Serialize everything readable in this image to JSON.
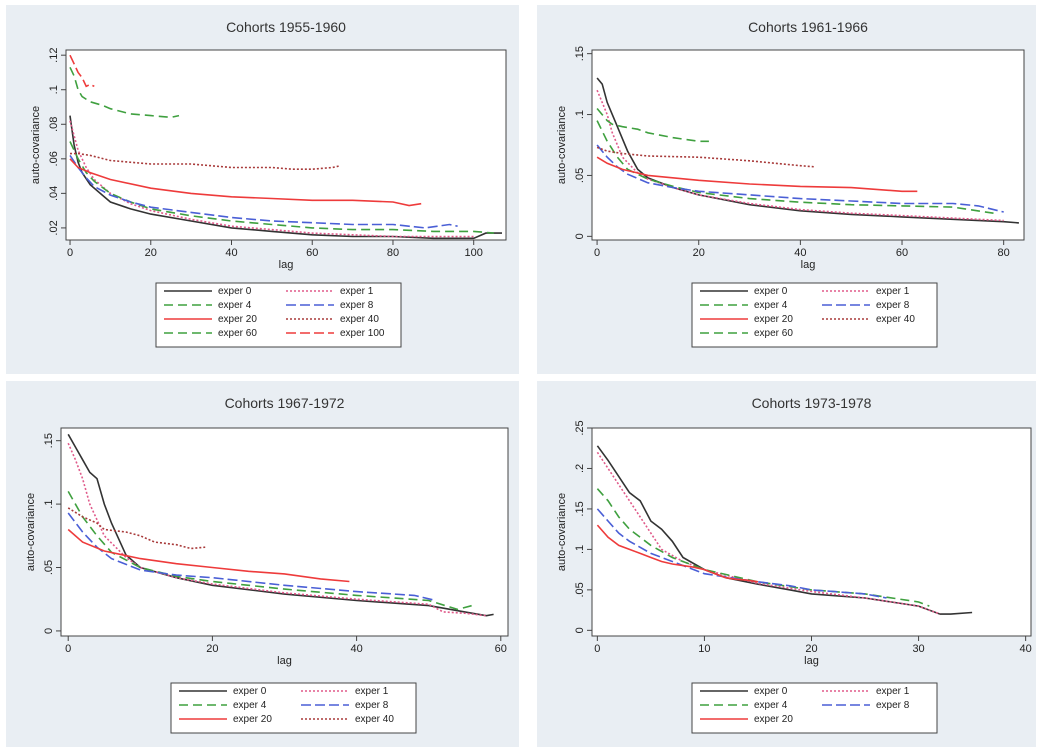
{
  "chart_data": [
    {
      "type": "line",
      "title": "Cohorts 1955-1960",
      "xlabel": "lag",
      "ylabel": "auto-covariance",
      "xlim": [
        -1,
        108
      ],
      "ylim": [
        0.013,
        0.123
      ],
      "xticks": [
        0,
        20,
        40,
        60,
        80,
        100
      ],
      "xtick_labels": [
        "0",
        "20",
        "40",
        "60",
        "80",
        "100"
      ],
      "yticks": [
        0.02,
        0.04,
        0.06,
        0.08,
        0.1,
        0.12
      ],
      "ytick_labels": [
        ".02",
        ".04",
        ".06",
        ".08",
        ".1",
        ".12"
      ],
      "grid": false,
      "legend_position": "bottom",
      "series": [
        {
          "name": "exper 0",
          "color": "#333333",
          "dash": "",
          "x": [
            0,
            1,
            2,
            3,
            5,
            8,
            10,
            15,
            20,
            30,
            40,
            50,
            60,
            70,
            80,
            90,
            100,
            103,
            107
          ],
          "y": [
            0.085,
            0.068,
            0.058,
            0.052,
            0.045,
            0.039,
            0.035,
            0.031,
            0.028,
            0.024,
            0.02,
            0.018,
            0.016,
            0.015,
            0.015,
            0.014,
            0.014,
            0.017,
            0.017
          ]
        },
        {
          "name": "exper 1",
          "color": "#e05a8a",
          "dash": "2,2",
          "x": [
            0,
            2,
            4,
            6,
            10,
            15,
            20,
            30,
            40,
            50,
            60,
            70,
            80,
            90,
            100
          ],
          "y": [
            0.082,
            0.065,
            0.055,
            0.048,
            0.04,
            0.034,
            0.03,
            0.025,
            0.021,
            0.019,
            0.017,
            0.016,
            0.015,
            0.015,
            0.015
          ]
        },
        {
          "name": "exper 4",
          "color": "#3fa03f",
          "dash": "9,5",
          "x": [
            0,
            2,
            4,
            6,
            10,
            15,
            20,
            30,
            40,
            50,
            60,
            70,
            80,
            90,
            100,
            105
          ],
          "y": [
            0.07,
            0.06,
            0.052,
            0.047,
            0.04,
            0.035,
            0.031,
            0.027,
            0.024,
            0.022,
            0.02,
            0.019,
            0.019,
            0.018,
            0.018,
            0.017
          ]
        },
        {
          "name": "exper 8",
          "color": "#4a5fd6",
          "dash": "10,4",
          "x": [
            0,
            2,
            4,
            6,
            10,
            15,
            20,
            30,
            40,
            50,
            60,
            70,
            80,
            88,
            94,
            96
          ],
          "y": [
            0.062,
            0.055,
            0.049,
            0.044,
            0.039,
            0.035,
            0.032,
            0.029,
            0.026,
            0.024,
            0.023,
            0.022,
            0.022,
            0.02,
            0.022,
            0.021
          ]
        },
        {
          "name": "exper 20",
          "color": "#ee3b3b",
          "dash": "",
          "x": [
            0,
            2,
            5,
            10,
            20,
            30,
            40,
            50,
            60,
            70,
            80,
            84,
            87
          ],
          "y": [
            0.06,
            0.055,
            0.052,
            0.048,
            0.043,
            0.04,
            0.038,
            0.037,
            0.036,
            0.036,
            0.035,
            0.033,
            0.034
          ]
        },
        {
          "name": "exper 40",
          "color": "#a83a3a",
          "dash": "2,2",
          "x": [
            0,
            2,
            5,
            10,
            20,
            30,
            40,
            50,
            55,
            60,
            65,
            67
          ],
          "y": [
            0.063,
            0.063,
            0.062,
            0.059,
            0.057,
            0.057,
            0.055,
            0.055,
            0.054,
            0.054,
            0.055,
            0.056
          ]
        },
        {
          "name": "exper 60",
          "color": "#3fa03f",
          "dash": "9,5",
          "x": [
            0,
            1,
            2,
            3,
            5,
            8,
            10,
            15,
            20,
            25,
            27
          ],
          "y": [
            0.113,
            0.108,
            0.1,
            0.096,
            0.093,
            0.091,
            0.089,
            0.086,
            0.085,
            0.084,
            0.085
          ]
        },
        {
          "name": "exper 100",
          "color": "#ee3b3b",
          "dash": "10,4",
          "x": [
            0,
            1,
            2,
            3,
            4,
            5,
            6
          ],
          "y": [
            0.12,
            0.115,
            0.11,
            0.107,
            0.102,
            0.103,
            0.102
          ]
        }
      ]
    },
    {
      "type": "line",
      "title": "Cohorts 1961-1966",
      "xlabel": "lag",
      "ylabel": "auto-covariance",
      "xlim": [
        -1,
        84
      ],
      "ylim": [
        -0.003,
        0.153
      ],
      "xticks": [
        0,
        20,
        40,
        60,
        80
      ],
      "xtick_labels": [
        "0",
        "20",
        "40",
        "60",
        "80"
      ],
      "yticks": [
        0,
        0.05,
        0.1,
        0.15
      ],
      "ytick_labels": [
        "0",
        ".05",
        ".1",
        ".15"
      ],
      "grid": false,
      "legend_position": "bottom",
      "series": [
        {
          "name": "exper 0",
          "color": "#333333",
          "dash": "",
          "x": [
            0,
            1,
            2,
            3,
            4,
            5,
            6,
            8,
            10,
            15,
            20,
            30,
            40,
            50,
            60,
            70,
            80,
            83
          ],
          "y": [
            0.13,
            0.125,
            0.11,
            0.1,
            0.09,
            0.08,
            0.07,
            0.055,
            0.048,
            0.04,
            0.034,
            0.026,
            0.021,
            0.018,
            0.016,
            0.014,
            0.012,
            0.011
          ]
        },
        {
          "name": "exper 1",
          "color": "#e05a8a",
          "dash": "2,2",
          "x": [
            0,
            1,
            2,
            3,
            5,
            8,
            10,
            15,
            20,
            30,
            40,
            50,
            60,
            70,
            80
          ],
          "y": [
            0.12,
            0.11,
            0.1,
            0.085,
            0.065,
            0.052,
            0.047,
            0.04,
            0.034,
            0.027,
            0.022,
            0.019,
            0.017,
            0.015,
            0.013
          ]
        },
        {
          "name": "exper 4",
          "color": "#3fa03f",
          "dash": "9,5",
          "x": [
            0,
            2,
            4,
            6,
            10,
            15,
            20,
            30,
            40,
            50,
            60,
            70,
            78
          ],
          "y": [
            0.095,
            0.078,
            0.065,
            0.055,
            0.047,
            0.041,
            0.036,
            0.031,
            0.028,
            0.026,
            0.025,
            0.024,
            0.019
          ]
        },
        {
          "name": "exper 8",
          "color": "#4a5fd6",
          "dash": "10,4",
          "x": [
            0,
            2,
            4,
            6,
            10,
            15,
            20,
            30,
            40,
            50,
            60,
            70,
            75,
            80
          ],
          "y": [
            0.075,
            0.065,
            0.057,
            0.051,
            0.044,
            0.04,
            0.037,
            0.034,
            0.031,
            0.029,
            0.027,
            0.027,
            0.025,
            0.02
          ]
        },
        {
          "name": "exper 20",
          "color": "#ee3b3b",
          "dash": "",
          "x": [
            0,
            2,
            5,
            10,
            20,
            30,
            40,
            50,
            60,
            63
          ],
          "y": [
            0.065,
            0.06,
            0.055,
            0.05,
            0.046,
            0.043,
            0.041,
            0.04,
            0.037,
            0.037
          ]
        },
        {
          "name": "exper 40",
          "color": "#a83a3a",
          "dash": "2,2",
          "x": [
            0,
            2,
            5,
            10,
            20,
            30,
            40,
            43
          ],
          "y": [
            0.073,
            0.07,
            0.068,
            0.066,
            0.065,
            0.062,
            0.058,
            0.057
          ]
        },
        {
          "name": "exper 60",
          "color": "#3fa03f",
          "dash": "9,5",
          "x": [
            0,
            1,
            2,
            3,
            5,
            8,
            10,
            15,
            20,
            22
          ],
          "y": [
            0.105,
            0.1,
            0.095,
            0.092,
            0.09,
            0.088,
            0.085,
            0.081,
            0.078,
            0.078
          ]
        }
      ]
    },
    {
      "type": "line",
      "title": "Cohorts 1967-1972",
      "xlabel": "lag",
      "ylabel": "auto-covariance",
      "xlim": [
        -1,
        61
      ],
      "ylim": [
        -0.004,
        0.16
      ],
      "xticks": [
        0,
        20,
        40,
        60
      ],
      "xtick_labels": [
        "0",
        "20",
        "40",
        "60"
      ],
      "yticks": [
        0,
        0.05,
        0.1,
        0.15
      ],
      "ytick_labels": [
        "0",
        ".05",
        ".1",
        ".15"
      ],
      "grid": false,
      "legend_position": "bottom",
      "series": [
        {
          "name": "exper 0",
          "color": "#333333",
          "dash": "",
          "x": [
            0,
            1,
            2,
            3,
            4,
            5,
            6,
            8,
            10,
            15,
            20,
            30,
            40,
            50,
            55,
            58,
            59
          ],
          "y": [
            0.155,
            0.145,
            0.135,
            0.125,
            0.12,
            0.1,
            0.085,
            0.06,
            0.05,
            0.042,
            0.036,
            0.029,
            0.024,
            0.02,
            0.015,
            0.012,
            0.013
          ]
        },
        {
          "name": "exper 1",
          "color": "#e05a8a",
          "dash": "2,2",
          "x": [
            0,
            1,
            2,
            3,
            5,
            8,
            10,
            15,
            20,
            30,
            40,
            50,
            52,
            55,
            58
          ],
          "y": [
            0.148,
            0.135,
            0.12,
            0.1,
            0.075,
            0.058,
            0.05,
            0.042,
            0.037,
            0.03,
            0.025,
            0.021,
            0.015,
            0.014,
            0.012
          ]
        },
        {
          "name": "exper 4",
          "color": "#3fa03f",
          "dash": "9,5",
          "x": [
            0,
            2,
            4,
            6,
            10,
            15,
            20,
            30,
            40,
            50,
            54,
            56
          ],
          "y": [
            0.11,
            0.09,
            0.075,
            0.062,
            0.05,
            0.043,
            0.039,
            0.033,
            0.028,
            0.024,
            0.017,
            0.02
          ]
        },
        {
          "name": "exper 8",
          "color": "#4a5fd6",
          "dash": "10,4",
          "x": [
            0,
            2,
            4,
            6,
            10,
            15,
            20,
            30,
            40,
            48,
            51
          ],
          "y": [
            0.093,
            0.078,
            0.066,
            0.057,
            0.048,
            0.044,
            0.042,
            0.036,
            0.031,
            0.028,
            0.024
          ]
        },
        {
          "name": "exper 20",
          "color": "#ee3b3b",
          "dash": "",
          "x": [
            0,
            2,
            5,
            10,
            15,
            20,
            25,
            30,
            35,
            39
          ],
          "y": [
            0.08,
            0.07,
            0.063,
            0.057,
            0.053,
            0.05,
            0.047,
            0.045,
            0.041,
            0.039
          ]
        },
        {
          "name": "exper 40",
          "color": "#a83a3a",
          "dash": "2,2",
          "x": [
            0,
            2,
            4,
            5,
            8,
            10,
            12,
            15,
            17,
            19
          ],
          "y": [
            0.097,
            0.09,
            0.085,
            0.08,
            0.078,
            0.075,
            0.07,
            0.068,
            0.065,
            0.066
          ]
        }
      ]
    },
    {
      "type": "line",
      "title": "Cohorts 1973-1978",
      "xlabel": "lag",
      "ylabel": "auto-covariance",
      "xlim": [
        -0.5,
        40.5
      ],
      "ylim": [
        -0.007,
        0.25
      ],
      "xticks": [
        0,
        10,
        20,
        30,
        40
      ],
      "xtick_labels": [
        "0",
        "10",
        "20",
        "30",
        "40"
      ],
      "yticks": [
        0,
        0.05,
        0.1,
        0.15,
        0.2,
        0.25
      ],
      "ytick_labels": [
        "0",
        ".05",
        ".1",
        ".15",
        ".2",
        ".25"
      ],
      "grid": false,
      "legend_position": "bottom",
      "series": [
        {
          "name": "exper 0",
          "color": "#333333",
          "dash": "",
          "x": [
            0,
            1,
            2,
            3,
            4,
            5,
            6,
            7,
            8,
            10,
            12,
            15,
            18,
            20,
            25,
            30,
            32,
            33,
            35
          ],
          "y": [
            0.228,
            0.21,
            0.19,
            0.17,
            0.16,
            0.135,
            0.125,
            0.11,
            0.09,
            0.075,
            0.065,
            0.057,
            0.05,
            0.045,
            0.04,
            0.03,
            0.02,
            0.02,
            0.022
          ]
        },
        {
          "name": "exper 1",
          "color": "#e05a8a",
          "dash": "2,2",
          "x": [
            0,
            1,
            2,
            3,
            4,
            5,
            6,
            8,
            10,
            15,
            20,
            25,
            30,
            32
          ],
          "y": [
            0.22,
            0.2,
            0.18,
            0.16,
            0.14,
            0.12,
            0.1,
            0.085,
            0.075,
            0.058,
            0.048,
            0.04,
            0.03,
            0.02
          ]
        },
        {
          "name": "exper 4",
          "color": "#3fa03f",
          "dash": "9,5",
          "x": [
            0,
            1,
            2,
            3,
            5,
            7,
            10,
            15,
            20,
            25,
            30,
            31
          ],
          "y": [
            0.175,
            0.16,
            0.14,
            0.125,
            0.105,
            0.09,
            0.075,
            0.06,
            0.05,
            0.045,
            0.035,
            0.03
          ]
        },
        {
          "name": "exper 8",
          "color": "#4a5fd6",
          "dash": "10,4",
          "x": [
            0,
            1,
            2,
            3,
            5,
            7,
            10,
            15,
            18,
            20,
            25,
            27
          ],
          "y": [
            0.15,
            0.135,
            0.12,
            0.11,
            0.095,
            0.085,
            0.07,
            0.06,
            0.055,
            0.05,
            0.045,
            0.04
          ]
        },
        {
          "name": "exper 20",
          "color": "#ee3b3b",
          "dash": "",
          "x": [
            0,
            1,
            2,
            3,
            4,
            5,
            6,
            7,
            8,
            9,
            10,
            11,
            12,
            13,
            14,
            15
          ],
          "y": [
            0.13,
            0.115,
            0.105,
            0.1,
            0.095,
            0.09,
            0.085,
            0.082,
            0.08,
            0.078,
            0.075,
            0.07,
            0.065,
            0.063,
            0.062,
            0.06
          ]
        }
      ]
    }
  ]
}
